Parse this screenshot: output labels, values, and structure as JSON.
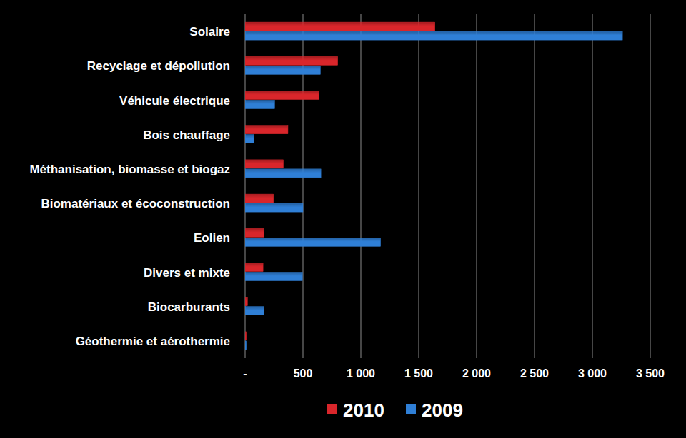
{
  "chart_data": {
    "type": "bar",
    "orientation": "horizontal",
    "categories": [
      "Solaire",
      "Recyclage et dépollution",
      "Véhicule électrique",
      "Bois chauffage",
      "Méthanisation, biomasse et biogaz",
      "Biomatériaux et écoconstruction",
      "Eolien",
      "Divers et mixte",
      "Biocarburants",
      "Géothermie et aérothermie"
    ],
    "series": [
      {
        "name": "2010",
        "color": "#d9262b",
        "values": [
          1640,
          800,
          640,
          370,
          330,
          245,
          165,
          155,
          20,
          10
        ]
      },
      {
        "name": "2009",
        "color": "#2f7fd6",
        "values": [
          3260,
          650,
          255,
          75,
          655,
          500,
          1170,
          495,
          165,
          10
        ]
      }
    ],
    "xlim": [
      0,
      3500
    ],
    "xticks": [
      {
        "value": 0,
        "label": "-"
      },
      500,
      {
        "value": 1000,
        "label": "1 000"
      },
      {
        "value": 1500,
        "label": "1 500"
      },
      {
        "value": 2000,
        "label": "2 000"
      },
      {
        "value": 2500,
        "label": "2 500"
      },
      {
        "value": 3000,
        "label": "3 000"
      },
      {
        "value": 3500,
        "label": "3 500"
      }
    ],
    "grid": true,
    "legend": "bottom"
  }
}
